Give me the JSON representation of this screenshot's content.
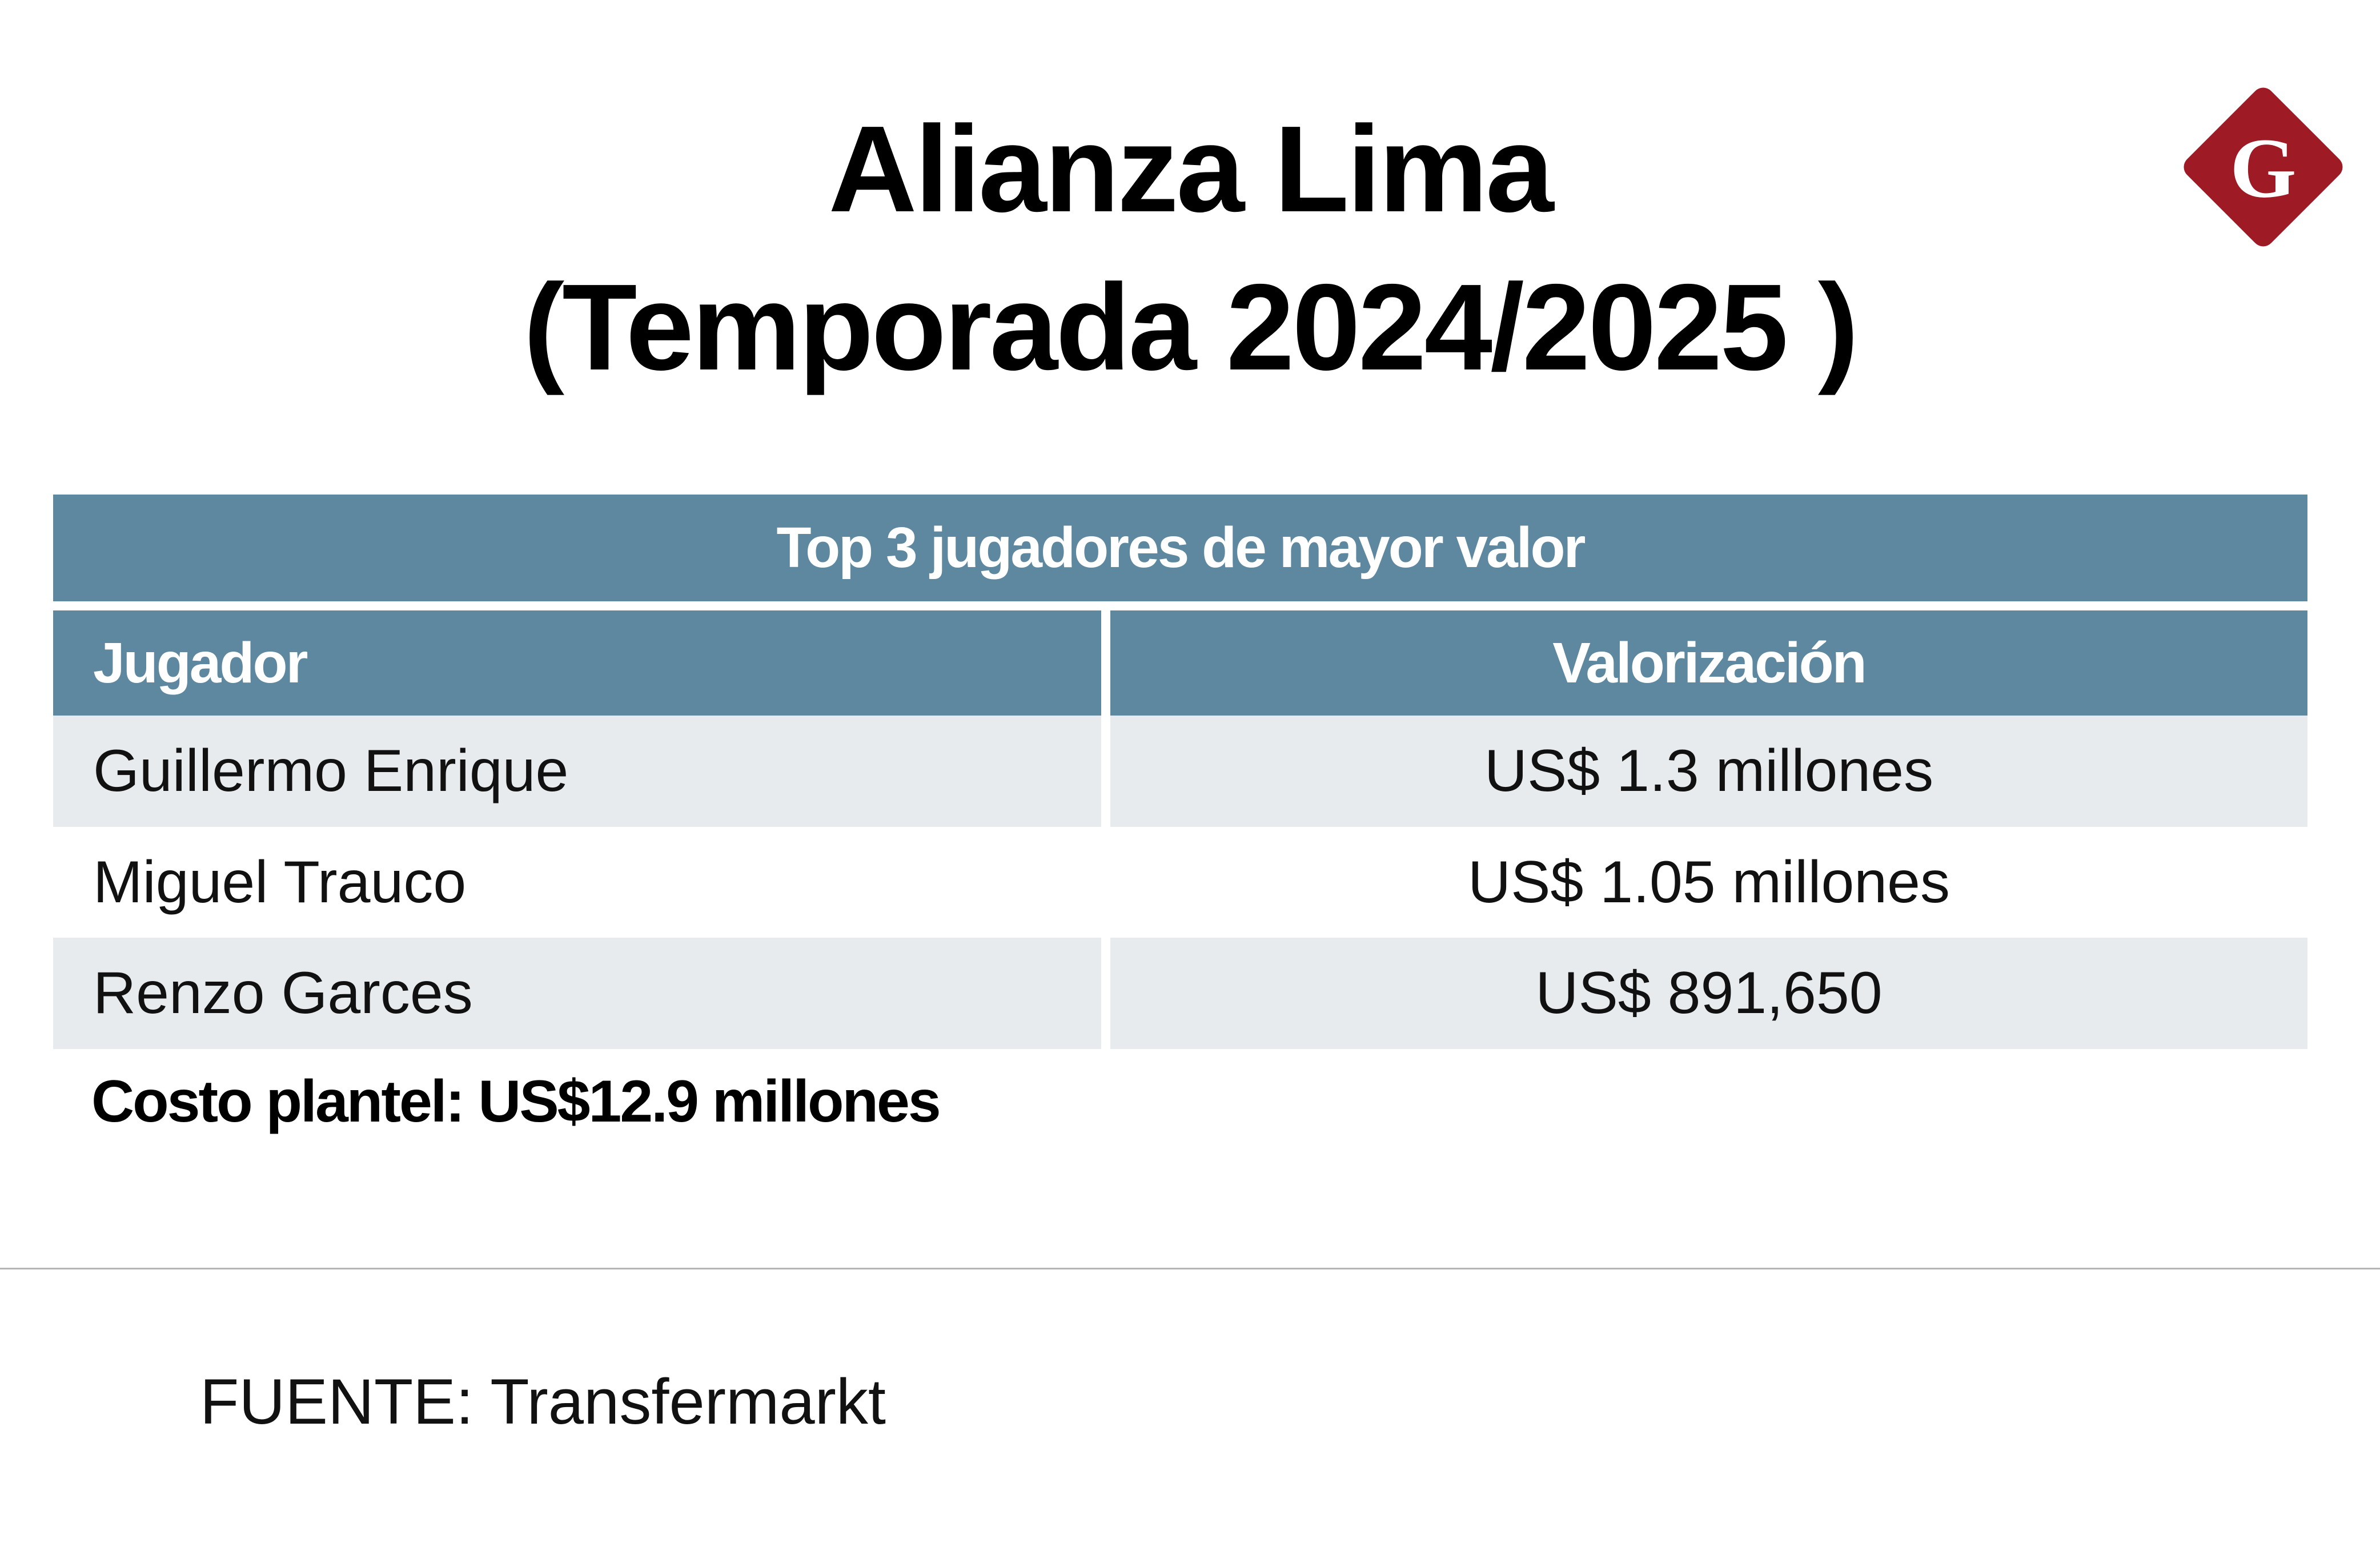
{
  "title": {
    "line1": "Alianza Lima",
    "line2": "(Temporada 2024/2025 )"
  },
  "logo": {
    "letter": "G",
    "color": "#9e1b26"
  },
  "table": {
    "caption": "Top 3 jugadores de mayor valor",
    "headers": [
      "Jugador",
      "Valorización"
    ],
    "header_color": "#5d88a0",
    "rows": [
      {
        "player": "Guillermo Enrique",
        "value": "US$ 1.3 millones"
      },
      {
        "player": "Miguel Trauco",
        "value": "US$ 1.05 millones"
      },
      {
        "player": "Renzo Garces",
        "value": "US$ 891,650"
      }
    ]
  },
  "total": "Costo plantel: US$12.9 millones",
  "source": "FUENTE: Transfermarkt"
}
